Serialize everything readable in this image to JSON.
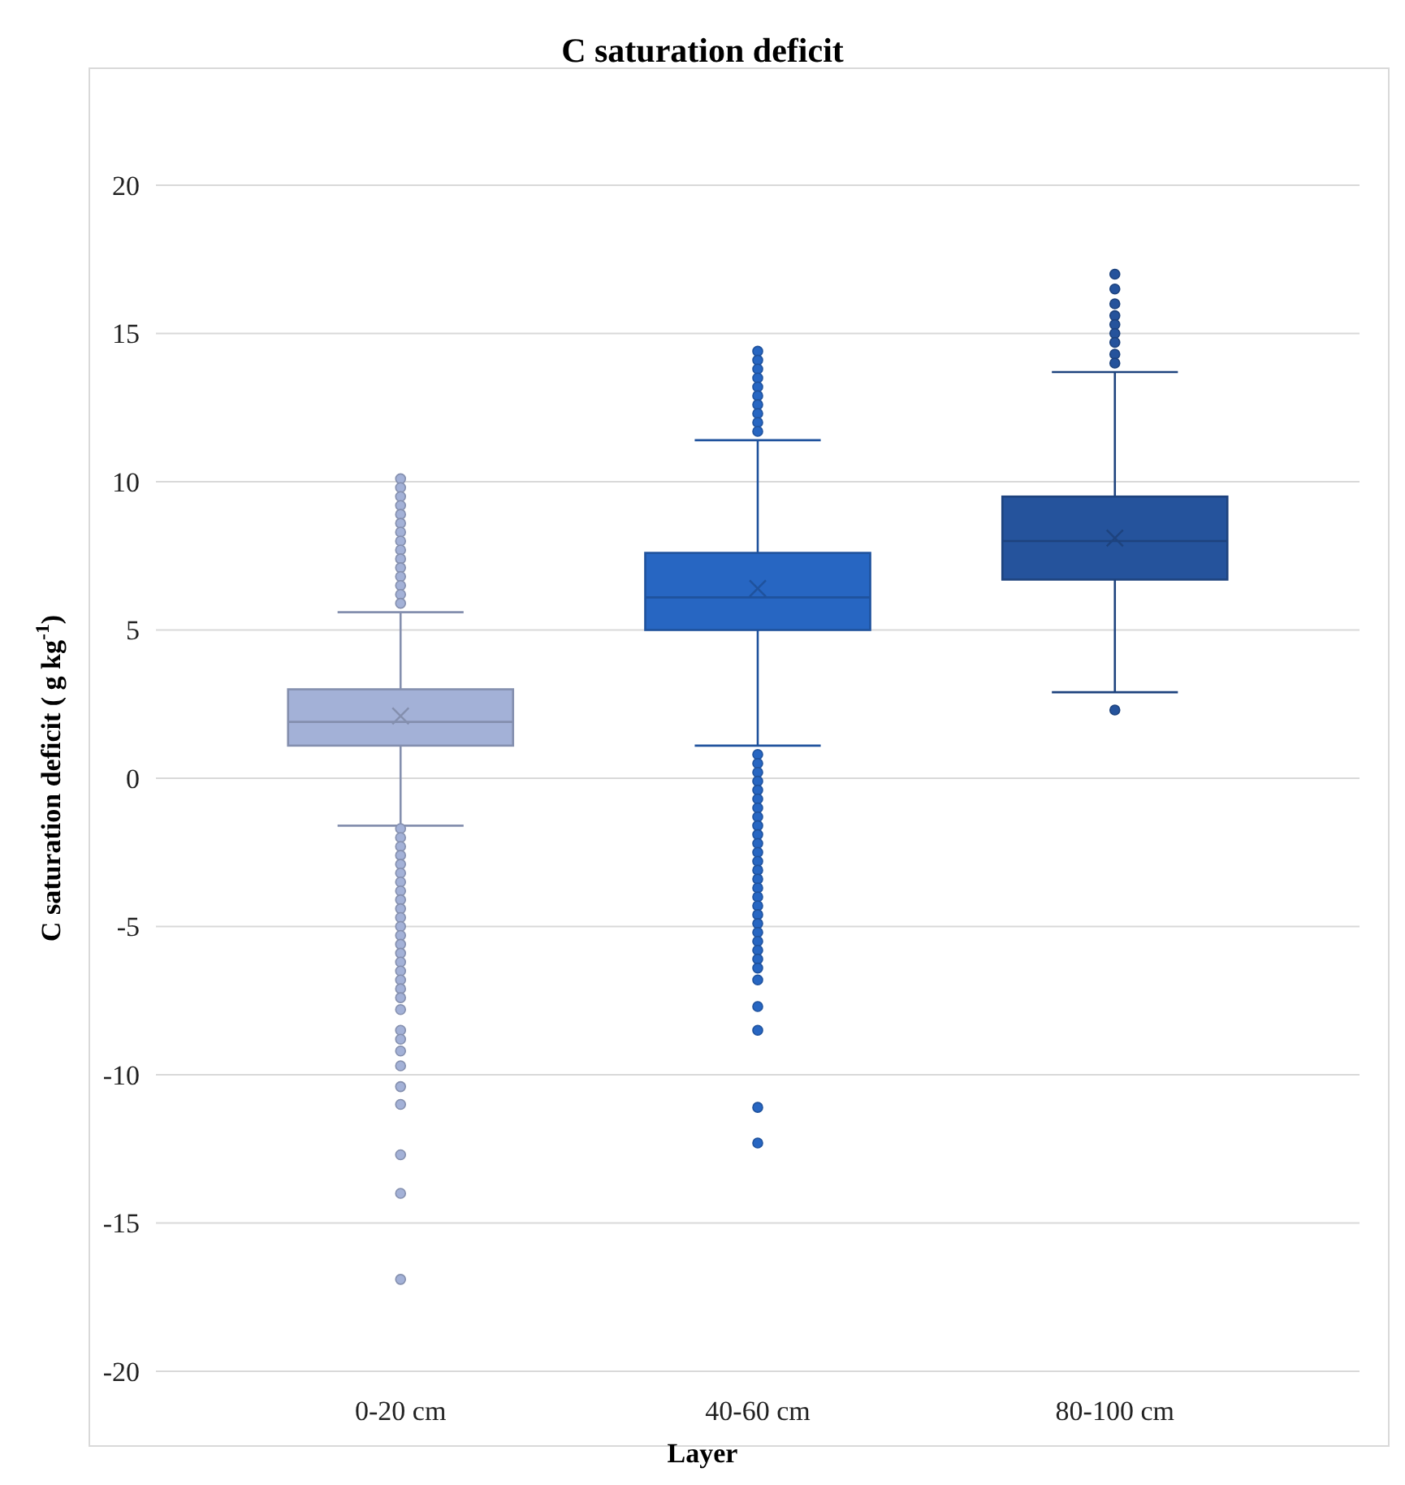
{
  "chart_data": {
    "type": "box",
    "title": "C saturation deficit",
    "xlabel": "Layer",
    "ylabel": "C saturation deficit ( g kg$^{-1}$)",
    "categories": [
      "0-20 cm",
      "40-60 cm",
      "80-100 cm"
    ],
    "colors": [
      "#a3b1d7",
      "#2766c2",
      "#25539c"
    ],
    "boxes": [
      {
        "low": -1.6,
        "q1": 1.1,
        "median": 1.9,
        "q3": 3.0,
        "high": 5.6,
        "mean": 2.1,
        "outliers": [
          10.1,
          9.8,
          9.5,
          9.2,
          8.9,
          8.6,
          8.3,
          8.0,
          7.7,
          7.4,
          7.1,
          6.8,
          6.5,
          6.2,
          5.9,
          -1.7,
          -2.0,
          -2.3,
          -2.6,
          -2.9,
          -3.2,
          -3.5,
          -3.8,
          -4.1,
          -4.4,
          -4.7,
          -5.0,
          -5.3,
          -5.6,
          -5.9,
          -6.2,
          -6.5,
          -6.8,
          -7.1,
          -7.4,
          -7.8,
          -8.5,
          -8.8,
          -9.2,
          -9.7,
          -10.4,
          -11.0,
          -12.7,
          -14.0,
          -16.9
        ]
      },
      {
        "low": 1.1,
        "q1": 5.0,
        "median": 6.1,
        "q3": 7.6,
        "high": 11.4,
        "mean": 6.4,
        "outliers": [
          14.4,
          14.1,
          13.8,
          13.5,
          13.2,
          12.9,
          12.6,
          12.3,
          12.0,
          11.7,
          0.8,
          0.5,
          0.2,
          -0.1,
          -0.4,
          -0.7,
          -1.0,
          -1.3,
          -1.6,
          -1.9,
          -2.2,
          -2.5,
          -2.8,
          -3.1,
          -3.4,
          -3.7,
          -4.0,
          -4.3,
          -4.6,
          -4.9,
          -5.2,
          -5.5,
          -5.8,
          -6.1,
          -6.4,
          -6.8,
          -7.7,
          -8.5,
          -11.1,
          -12.3
        ]
      },
      {
        "low": 2.9,
        "q1": 6.7,
        "median": 8.0,
        "q3": 9.5,
        "high": 13.7,
        "mean": 8.1,
        "outliers": [
          17.0,
          16.5,
          16.0,
          15.6,
          15.3,
          15.0,
          14.7,
          14.3,
          14.0,
          2.3
        ]
      }
    ],
    "ylim": [
      -20,
      20
    ],
    "yticks": [
      -20,
      -15,
      -10,
      -5,
      0,
      5,
      10,
      15,
      20
    ],
    "grid": "y"
  }
}
